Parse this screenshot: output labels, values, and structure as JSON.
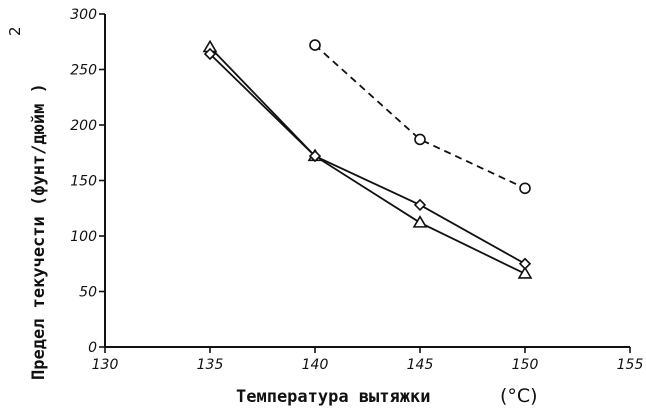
{
  "chart_data": {
    "type": "line",
    "xlabel": "Температура вытяжки",
    "xlabel_unit": "(°C)",
    "ylabel": "Предел текучести (фунт/дюйм )",
    "ylabel_superscript": "2",
    "xlim": [
      130,
      155
    ],
    "ylim": [
      0,
      300
    ],
    "x_ticks": [
      "130",
      "135",
      "140",
      "145",
      "150",
      "155"
    ],
    "y_ticks": [
      "0",
      "50",
      "100",
      "150",
      "200",
      "250",
      "300"
    ],
    "grid": false,
    "legend": "none",
    "series": [
      {
        "marker": "triangle",
        "line": "solid",
        "color": "#111111",
        "x": [
          135,
          140,
          145,
          150
        ],
        "y": [
          270,
          172,
          112,
          66
        ]
      },
      {
        "marker": "diamond",
        "line": "solid",
        "color": "#111111",
        "x": [
          135,
          140,
          145,
          150
        ],
        "y": [
          264,
          172,
          128,
          75
        ]
      },
      {
        "marker": "circle",
        "line": "dashed",
        "color": "#111111",
        "x": [
          140,
          145,
          150
        ],
        "y": [
          272,
          187,
          143
        ]
      }
    ]
  }
}
